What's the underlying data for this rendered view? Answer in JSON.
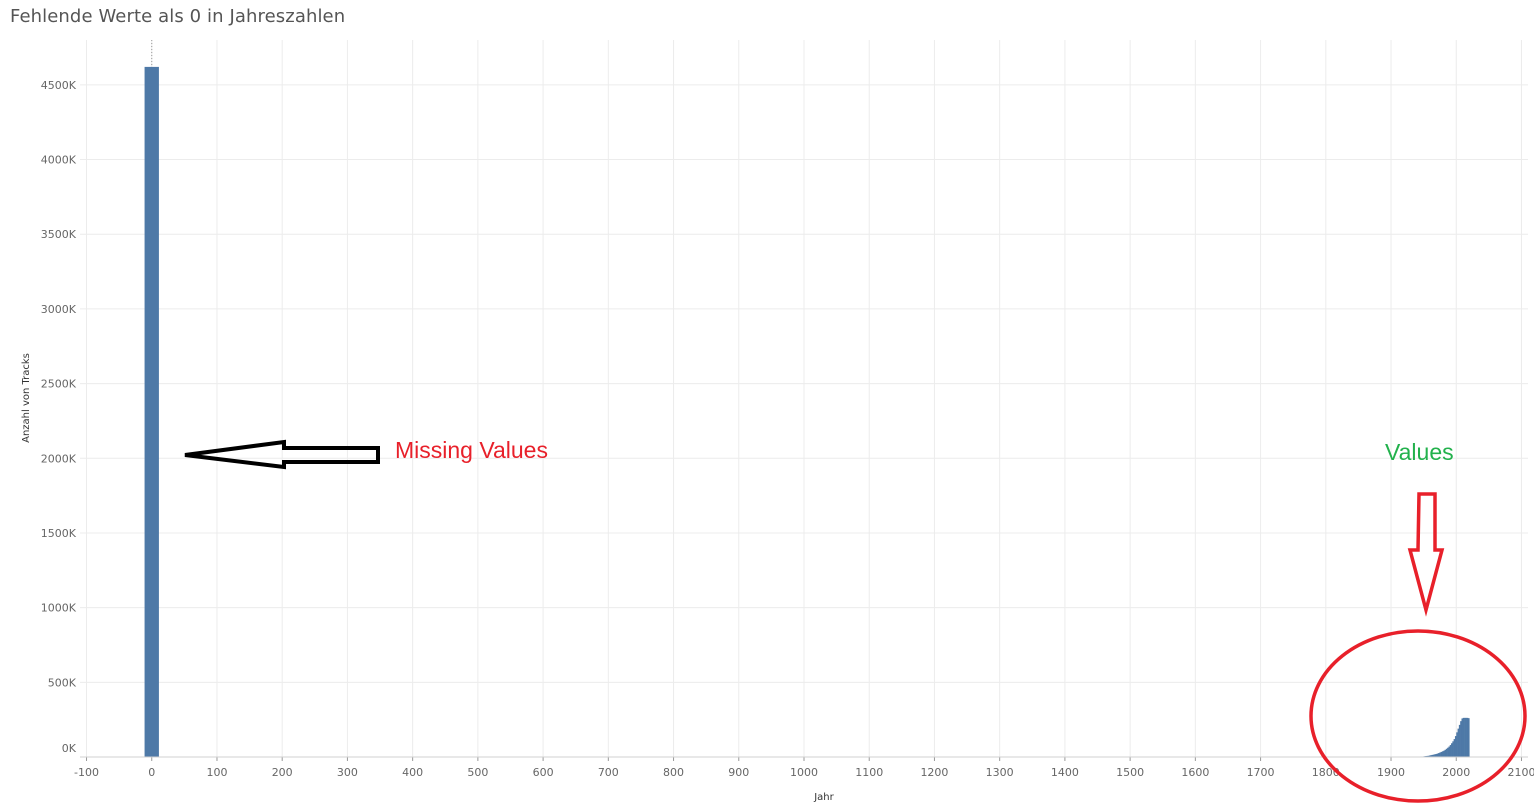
{
  "chart_data": {
    "type": "bar",
    "title": "Fehlende Werte als 0 in Jahreszahlen",
    "xlabel": "Jahr",
    "ylabel": "Anzahl von Tracks",
    "xlim": [
      -110,
      2110
    ],
    "ylim": [
      0,
      4800000
    ],
    "x_ticks": [
      -100,
      0,
      100,
      200,
      300,
      400,
      500,
      600,
      700,
      800,
      900,
      1000,
      1100,
      1200,
      1300,
      1400,
      1500,
      1600,
      1700,
      1800,
      1900,
      2000,
      2100
    ],
    "x_tick_labels": [
      "-100",
      "0",
      "100",
      "200",
      "300",
      "400",
      "500",
      "600",
      "700",
      "800",
      "900",
      "1000",
      "1100",
      "1200",
      "1300",
      "1400",
      "1500",
      "1600",
      "1700",
      "1800",
      "1900",
      "2000",
      "2100"
    ],
    "y_ticks": [
      0,
      500000,
      1000000,
      1500000,
      2000000,
      2500000,
      3000000,
      3500000,
      4000000,
      4500000
    ],
    "y_tick_labels": [
      "0K",
      "500K",
      "1000K",
      "1500K",
      "2000K",
      "2500K",
      "3000K",
      "3500K",
      "4000K",
      "4500K"
    ],
    "grid": true,
    "bar_color": "#4e79a7",
    "series": [
      {
        "x": [
          0,
          1920,
          1925,
          1930,
          1935,
          1940,
          1945,
          1950,
          1952,
          1954,
          1956,
          1958,
          1960,
          1962,
          1964,
          1966,
          1968,
          1970,
          1972,
          1974,
          1976,
          1978,
          1980,
          1982,
          1984,
          1986,
          1988,
          1990,
          1992,
          1994,
          1996,
          1998,
          2000,
          2002,
          2004,
          2006,
          2008,
          2010,
          2012,
          2014,
          2016,
          2018
        ],
        "values": [
          4620000,
          1000,
          1500,
          2000,
          2500,
          3000,
          3500,
          5000,
          6000,
          7000,
          8000,
          10000,
          12000,
          14000,
          16000,
          18000,
          20000,
          23000,
          26000,
          30000,
          34000,
          38000,
          42000,
          48000,
          55000,
          62000,
          70000,
          80000,
          92000,
          105000,
          120000,
          140000,
          165000,
          190000,
          215000,
          240000,
          258000,
          262000,
          262000,
          262000,
          262000,
          260000
        ]
      }
    ]
  },
  "annotations": {
    "missing_label": "Missing Values",
    "missing_color": "#e8202a",
    "values_label": "Values",
    "values_color": "#22b14c",
    "ellipse_color": "#e8202a",
    "arrow_color": "#000000",
    "arrow_values_color": "#e8202a"
  }
}
